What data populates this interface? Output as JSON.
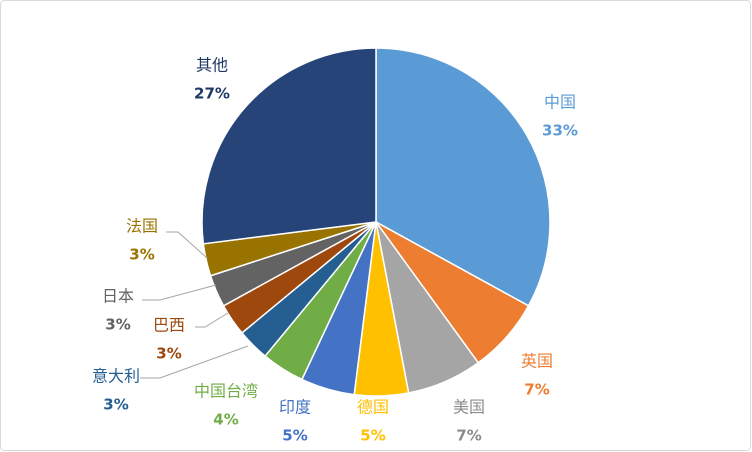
{
  "chart_data": {
    "type": "pie",
    "categories": [
      "中国",
      "英国",
      "美国",
      "德国",
      "印度",
      "中国台湾",
      "意大利",
      "巴西",
      "日本",
      "法国",
      "其他"
    ],
    "values": [
      33,
      7,
      7,
      5,
      5,
      4,
      3,
      3,
      3,
      3,
      27
    ],
    "value_labels": [
      "33%",
      "7%",
      "7%",
      "5%",
      "5%",
      "4%",
      "3%",
      "3%",
      "3%",
      "3%",
      "27%"
    ],
    "colors": [
      "#5b9bd5",
      "#ed7d31",
      "#a5a5a5",
      "#ffc000",
      "#4472c4",
      "#70ad47",
      "#255e91",
      "#9e480e",
      "#636363",
      "#997300",
      "#264478"
    ]
  }
}
